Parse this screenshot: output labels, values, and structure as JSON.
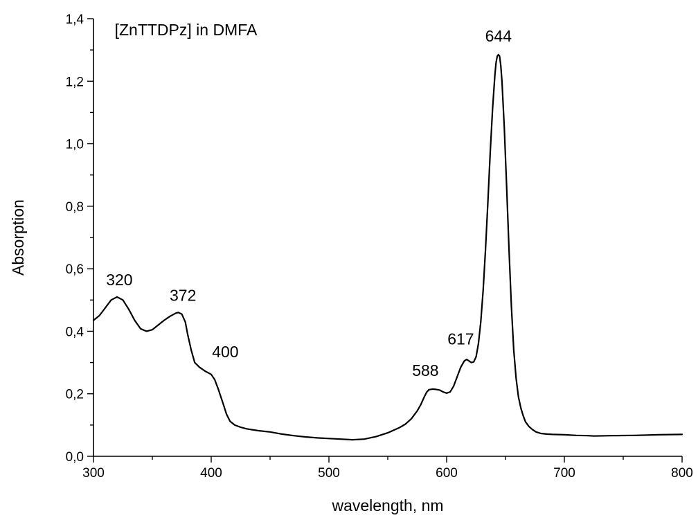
{
  "chart_data": {
    "type": "line",
    "title": "",
    "xlabel": "wavelength, nm",
    "ylabel": "Absorption",
    "xlim": [
      300,
      800
    ],
    "ylim": [
      0.0,
      1.4
    ],
    "x_ticks": [
      300,
      400,
      500,
      600,
      700,
      800
    ],
    "x_tick_labels": [
      "300",
      "400",
      "500",
      "600",
      "700",
      "800"
    ],
    "x_minor_step": 50,
    "y_ticks": [
      0.0,
      0.2,
      0.4,
      0.6,
      0.8,
      1.0,
      1.2,
      1.4
    ],
    "y_tick_labels": [
      "0,0",
      "0,2",
      "0,4",
      "0,6",
      "0,8",
      "1,0",
      "1,2",
      "1,4"
    ],
    "y_minor_step": 0.1,
    "grid": false,
    "legend": "none",
    "line_color": "#000000",
    "series": [
      {
        "x": [
          300,
          305,
          310,
          315,
          320,
          325,
          330,
          335,
          340,
          345,
          350,
          355,
          360,
          365,
          370,
          372,
          375,
          378,
          380,
          383,
          386,
          390,
          395,
          400,
          403,
          406,
          410,
          413,
          416,
          420,
          425,
          430,
          440,
          450,
          460,
          470,
          480,
          490,
          500,
          510,
          520,
          530,
          540,
          550,
          560,
          565,
          570,
          575,
          578,
          581,
          583,
          585,
          588,
          591,
          594,
          597,
          600,
          603,
          606,
          609,
          612,
          615,
          617,
          619,
          621,
          623,
          625,
          627,
          629,
          631,
          633,
          635,
          637,
          639,
          641,
          642,
          643,
          644,
          645,
          646,
          647,
          649,
          651,
          653,
          655,
          657,
          659,
          661,
          663,
          665,
          667,
          670,
          673,
          676,
          680,
          685,
          690,
          700,
          710,
          720,
          725,
          740,
          760,
          780,
          800
        ],
        "y": [
          0.435,
          0.45,
          0.475,
          0.5,
          0.51,
          0.5,
          0.47,
          0.435,
          0.408,
          0.4,
          0.405,
          0.42,
          0.435,
          0.448,
          0.458,
          0.46,
          0.455,
          0.43,
          0.39,
          0.34,
          0.3,
          0.285,
          0.272,
          0.262,
          0.245,
          0.215,
          0.17,
          0.135,
          0.112,
          0.1,
          0.093,
          0.088,
          0.082,
          0.078,
          0.071,
          0.066,
          0.062,
          0.059,
          0.057,
          0.055,
          0.053,
          0.055,
          0.063,
          0.075,
          0.092,
          0.103,
          0.12,
          0.145,
          0.165,
          0.19,
          0.205,
          0.213,
          0.215,
          0.214,
          0.212,
          0.206,
          0.202,
          0.206,
          0.225,
          0.255,
          0.285,
          0.305,
          0.31,
          0.305,
          0.3,
          0.302,
          0.318,
          0.36,
          0.43,
          0.53,
          0.66,
          0.81,
          0.97,
          1.11,
          1.22,
          1.26,
          1.28,
          1.285,
          1.28,
          1.25,
          1.2,
          1.05,
          0.86,
          0.66,
          0.48,
          0.34,
          0.25,
          0.19,
          0.155,
          0.13,
          0.11,
          0.095,
          0.085,
          0.078,
          0.073,
          0.071,
          0.07,
          0.069,
          0.067,
          0.066,
          0.065,
          0.066,
          0.067,
          0.069,
          0.07
        ]
      }
    ],
    "annotations": [
      {
        "text": "[ZnTTDPz] in DMFA",
        "x": 318,
        "y": 1.365
      },
      {
        "text": "320",
        "x": 322,
        "y": 0.565
      },
      {
        "text": "372",
        "x": 376,
        "y": 0.515
      },
      {
        "text": "400",
        "x": 412,
        "y": 0.335
      },
      {
        "text": "588",
        "x": 582,
        "y": 0.275
      },
      {
        "text": "617",
        "x": 612,
        "y": 0.375
      },
      {
        "text": "644",
        "x": 644,
        "y": 1.345
      }
    ]
  }
}
